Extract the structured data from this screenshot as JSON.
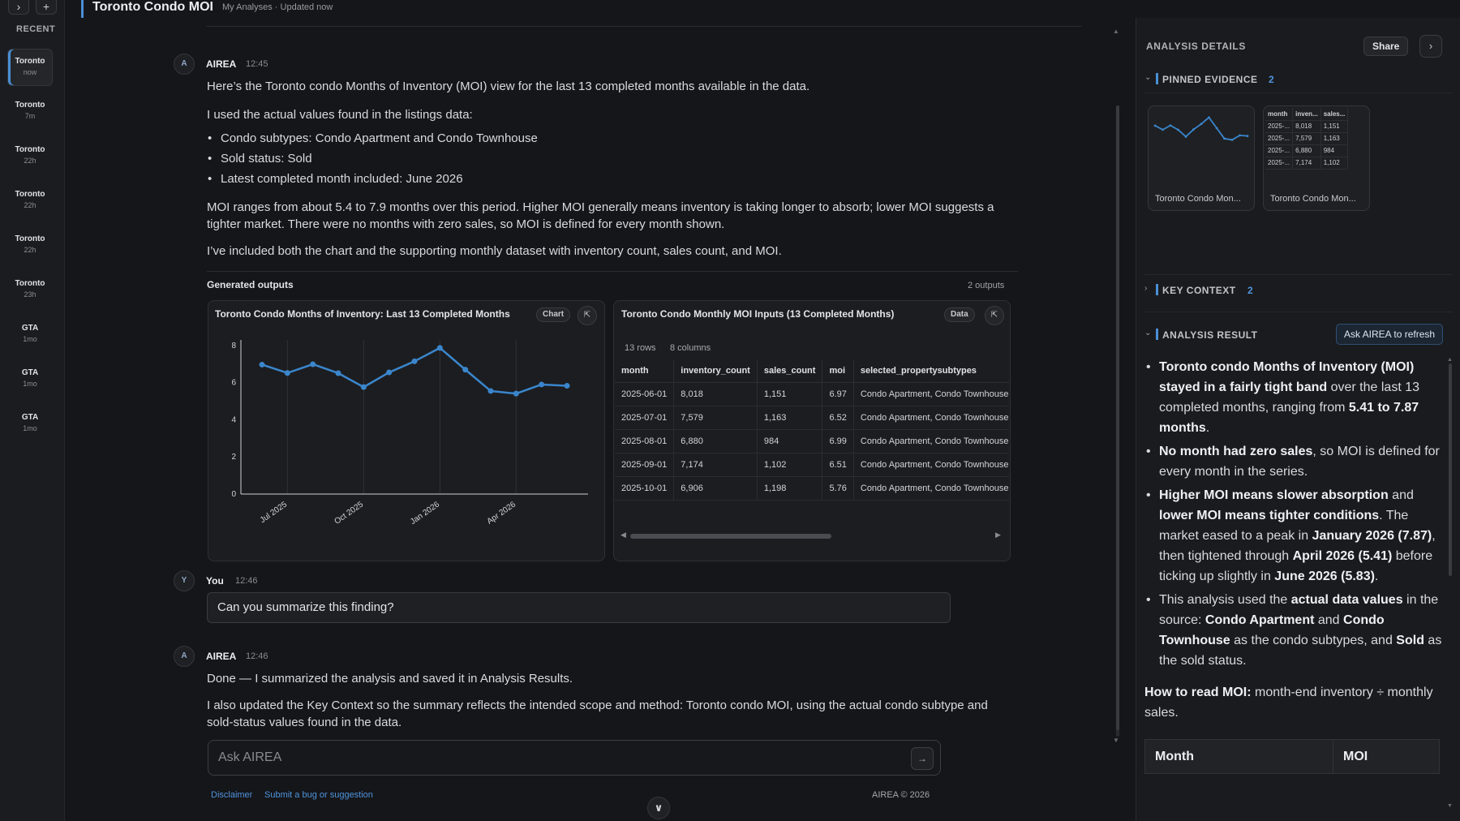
{
  "rail": {
    "expand_icon": "›",
    "new_icon": "+",
    "label": "RECENT",
    "items": [
      {
        "name": "Toronto",
        "time": "now",
        "active": true
      },
      {
        "name": "Toronto",
        "time": "7m"
      },
      {
        "name": "Toronto",
        "time": "22h"
      },
      {
        "name": "Toronto",
        "time": "22h"
      },
      {
        "name": "Toronto",
        "time": "22h"
      },
      {
        "name": "Toronto",
        "time": "23h"
      },
      {
        "name": "GTA",
        "time": "1mo"
      },
      {
        "name": "GTA",
        "time": "1mo"
      },
      {
        "name": "GTA",
        "time": "1mo"
      }
    ]
  },
  "header": {
    "title": "Toronto Condo MOI",
    "breadcrumb": "My Analyses · Updated now"
  },
  "messages": {
    "m1": {
      "avatar": "A",
      "sender": "AIREA",
      "time": "12:45",
      "p1": "Here’s the Toronto condo Months of Inventory (MOI) view for the last 13 completed months available in the data.",
      "p2": "I used the actual values found in the listings data:",
      "bullets": [
        "Condo subtypes: Condo Apartment and Condo Townhouse",
        "Sold status: Sold",
        "Latest completed month included: June 2026"
      ],
      "p3": "MOI ranges from about 5.4 to 7.9 months over this period. Higher MOI generally means inventory is taking longer to absorb; lower MOI suggests a tighter market. There were no months with zero sales, so MOI is defined for every month shown.",
      "p4": "I’ve included both the chart and the supporting monthly dataset with inventory count, sales count, and MOI."
    },
    "outputs": {
      "label": "Generated outputs",
      "count": "2 outputs"
    },
    "m2": {
      "avatar": "Y",
      "sender": "You",
      "time": "12:46",
      "text": "Can you summarize this finding?"
    },
    "m3": {
      "avatar": "A",
      "sender": "AIREA",
      "time": "12:46",
      "p1": "Done — I summarized the analysis and saved it in Analysis Results.",
      "p2": "I also updated the Key Context so the summary reflects the intended scope and method: Toronto condo MOI, using the actual condo subtype and sold-status values found in the data."
    }
  },
  "chart_card": {
    "title": "Toronto Condo Months of Inventory: Last 13 Completed Months",
    "badge": "Chart",
    "pin_icon": "pin-icon"
  },
  "chart_data": {
    "type": "line",
    "title": "Toronto Condo Months of Inventory: Last 13 Completed Months",
    "x": [
      "2025-06",
      "2025-07",
      "2025-08",
      "2025-09",
      "2025-10",
      "2025-11",
      "2025-12",
      "2026-01",
      "2026-02",
      "2026-03",
      "2026-04",
      "2026-05",
      "2026-06"
    ],
    "series": [
      {
        "values": [
          6.97,
          6.52,
          6.99,
          6.51,
          5.76,
          6.55,
          7.15,
          7.87,
          6.7,
          5.55,
          5.41,
          5.9,
          5.83
        ]
      }
    ],
    "xticks": [
      "Jul 2025",
      "Oct 2025",
      "Jan 2026",
      "Apr 2026"
    ],
    "yticks": [
      "0",
      "2",
      "4",
      "6",
      "8"
    ],
    "ylim": [
      0,
      8.3
    ],
    "grid": "vertical",
    "color": "#3a86cc"
  },
  "data_card": {
    "title": "Toronto Condo Monthly MOI Inputs (13 Completed Months)",
    "badge": "Data",
    "rows_label": "13 rows",
    "cols_label": "8 columns",
    "columns": [
      "month",
      "inventory_count",
      "sales_count",
      "moi",
      "selected_propertysubtypes"
    ],
    "rows": [
      [
        "2025-06-01",
        "8,018",
        "1,151",
        "6.97",
        "Condo Apartment, Condo Townhouse"
      ],
      [
        "2025-07-01",
        "7,579",
        "1,163",
        "6.52",
        "Condo Apartment, Condo Townhouse"
      ],
      [
        "2025-08-01",
        "6,880",
        "984",
        "6.99",
        "Condo Apartment, Condo Townhouse"
      ],
      [
        "2025-09-01",
        "7,174",
        "1,102",
        "6.51",
        "Condo Apartment, Condo Townhouse"
      ],
      [
        "2025-10-01",
        "6,906",
        "1,198",
        "5.76",
        "Condo Apartment, Condo Townhouse"
      ]
    ],
    "scroll_left": "◀",
    "scroll_right": "▶"
  },
  "composer": {
    "placeholder": "Ask AIREA",
    "send_icon": "→",
    "disclaimer": "Disclaimer",
    "bug_link": "Submit a bug or suggestion",
    "copyright": "AIREA © 2026",
    "scroll_down_icon": "∨"
  },
  "panel": {
    "title": "ANALYSIS DETAILS",
    "share": "Share",
    "collapse_icon": "›",
    "pinned": {
      "label": "PINNED EVIDENCE",
      "count": "2",
      "chev": "⌄",
      "thumb_chart_caption": "Toronto Condo Mon...",
      "thumb_table_caption": "Toronto Condo Mon...",
      "thumb_columns": [
        "month",
        "inven...",
        "sales..."
      ],
      "thumb_rows": [
        [
          "2025-...",
          "8,018",
          "1,151"
        ],
        [
          "2025-...",
          "7,579",
          "1,163"
        ],
        [
          "2025-...",
          "6,880",
          "984"
        ],
        [
          "2025-...",
          "7,174",
          "1,102"
        ]
      ]
    },
    "key_context": {
      "label": "KEY CONTEXT",
      "count": "2",
      "chev": "›"
    },
    "result": {
      "label": "ANALYSIS RESULT",
      "chev": "⌄",
      "refresh": "Ask AIREA to refresh",
      "b1_strong": "Toronto condo Months of Inventory (MOI) stayed in a fairly tight band",
      "b1_mid": " over the last 13 completed months, ranging from ",
      "b1_range": "5.41 to 7.87 months",
      "b1_end": ".",
      "b2_strong": "No month had zero sales",
      "b2_end": ", so MOI is defined for every month in the series.",
      "b3_s1": "Higher MOI means slower absorption",
      "b3_t1": " and ",
      "b3_s2": "lower MOI means tighter conditions",
      "b3_t2": ". The market eased to a peak in ",
      "b3_s3": "January 2026 (7.87)",
      "b3_t3": ", then tightened through ",
      "b3_s4": "April 2026 (5.41)",
      "b3_t4": " before ticking up slightly in ",
      "b3_s5": "June 2026 (5.83)",
      "b3_t5": ".",
      "b4_t1": "This analysis used the ",
      "b4_s1": "actual data values",
      "b4_t2": " in the source: ",
      "b4_s2": "Condo Apartment",
      "b4_t3": " and ",
      "b4_s3": "Condo Townhouse",
      "b4_t4": " as the condo subtypes, and ",
      "b4_s4": "Sold",
      "b4_t5": " as the sold status.",
      "how_strong": "How to read MOI:",
      "how_text": " month-end inventory ÷ monthly sales.",
      "table_cols": [
        "Month",
        "MOI"
      ]
    }
  }
}
